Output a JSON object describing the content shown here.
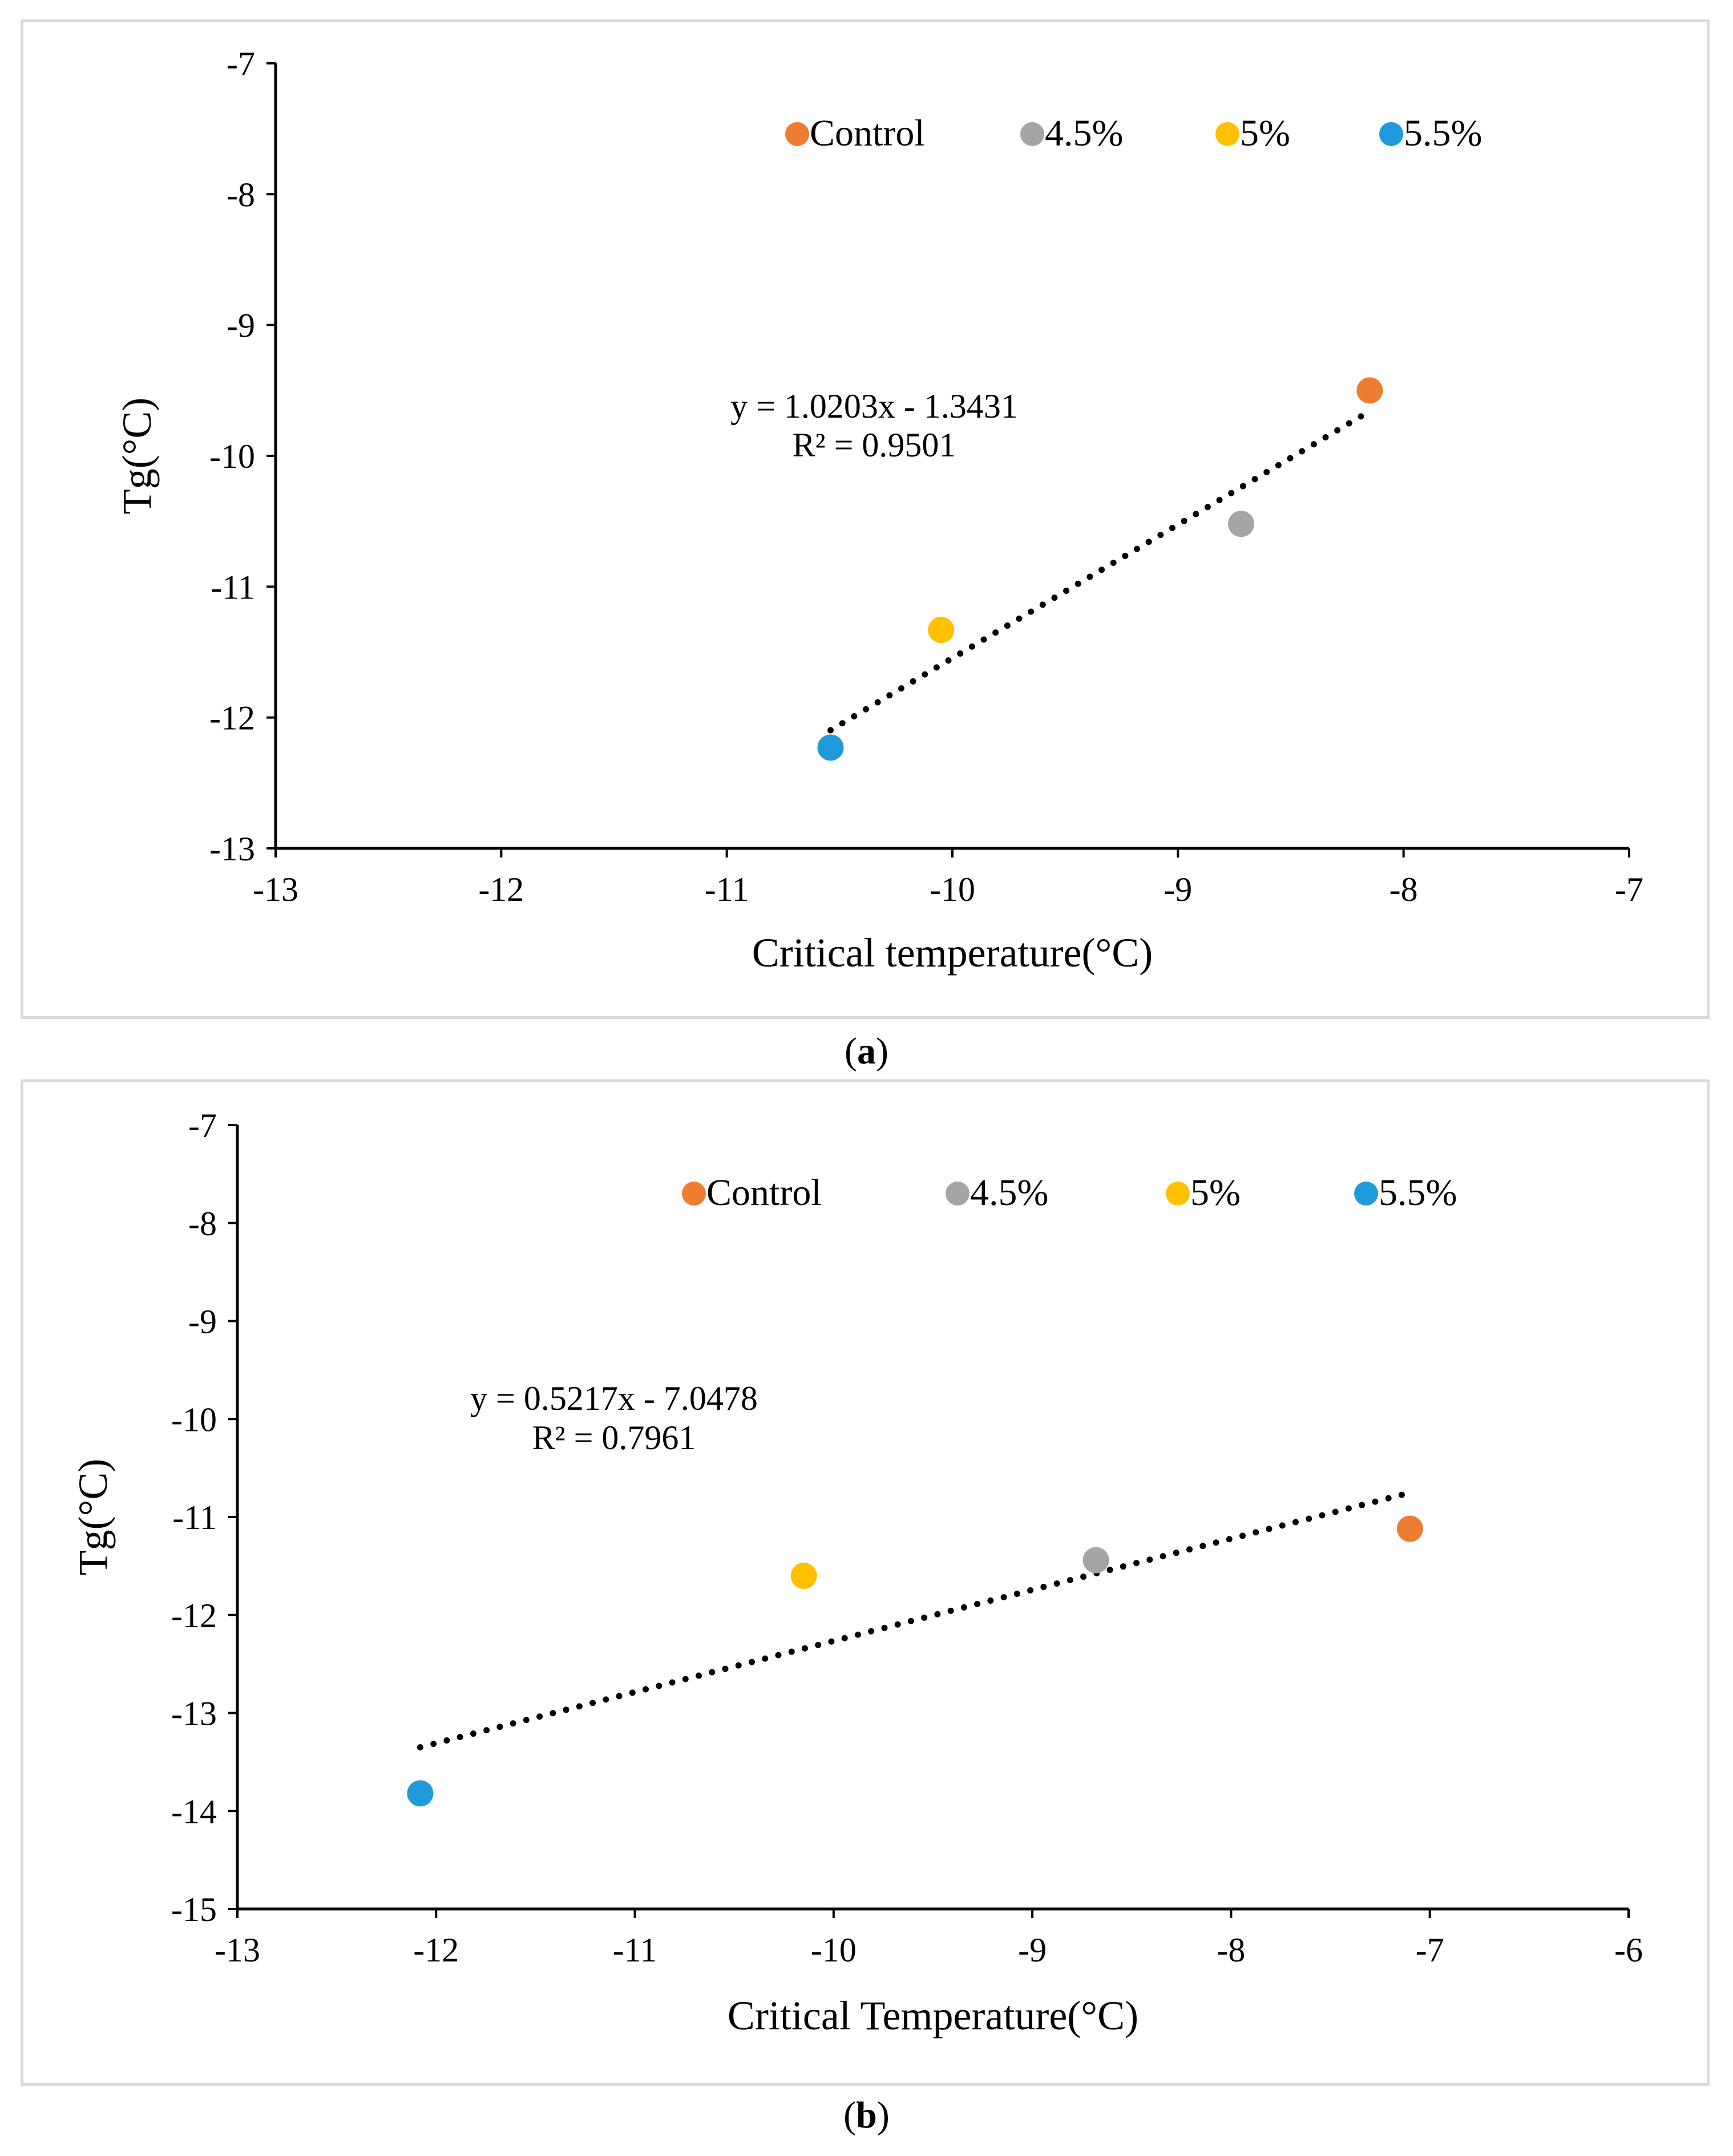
{
  "chart_data": [
    {
      "id": "a",
      "type": "scatter",
      "caption_letter": "a",
      "xlabel": "Critical temperature(°C)",
      "ylabel": "Tg(°C)",
      "xlim": [
        -13,
        -7
      ],
      "ylim": [
        -13,
        -7
      ],
      "xticks": [
        -13,
        -12,
        -11,
        -10,
        -9,
        -8,
        -7
      ],
      "yticks": [
        -7,
        -8,
        -9,
        -10,
        -11,
        -12,
        -13
      ],
      "series": [
        {
          "name": "Control",
          "color": "#ED7D31",
          "x": -8.15,
          "y": -9.5
        },
        {
          "name": "4.5%",
          "color": "#A5A5A5",
          "x": -8.72,
          "y": -10.52
        },
        {
          "name": "5%",
          "color": "#FFC000",
          "x": -10.05,
          "y": -11.33
        },
        {
          "name": "5.5%",
          "color": "#1F9ADB",
          "x": -10.54,
          "y": -12.23
        }
      ],
      "trendline": {
        "slope": 1.0203,
        "intercept": -1.3431,
        "x_range": [
          -10.54,
          -8.15
        ],
        "equation": "y = 1.0203x - 1.3431",
        "r2": "R² = 0.9501"
      }
    },
    {
      "id": "b",
      "type": "scatter",
      "caption_letter": "b",
      "xlabel": "Critical Temperature(°C)",
      "ylabel": "Tg(°C)",
      "xlim": [
        -13,
        -6
      ],
      "ylim": [
        -15,
        -7
      ],
      "xticks": [
        -13,
        -12,
        -11,
        -10,
        -9,
        -8,
        -7,
        -6
      ],
      "yticks": [
        -7,
        -8,
        -9,
        -10,
        -11,
        -12,
        -13,
        -14,
        -15
      ],
      "series": [
        {
          "name": "Control",
          "color": "#ED7D31",
          "x": -7.1,
          "y": -11.12
        },
        {
          "name": "4.5%",
          "color": "#A5A5A5",
          "x": -8.68,
          "y": -11.44
        },
        {
          "name": "5%",
          "color": "#FFC000",
          "x": -10.15,
          "y": -11.6
        },
        {
          "name": "5.5%",
          "color": "#1F9ADB",
          "x": -12.08,
          "y": -13.82
        }
      ],
      "trendline": {
        "slope": 0.5217,
        "intercept": -7.0478,
        "x_range": [
          -12.08,
          -7.1
        ],
        "equation": "y = 0.5217x - 7.0478",
        "r2": "R² = 0.7961"
      }
    }
  ]
}
